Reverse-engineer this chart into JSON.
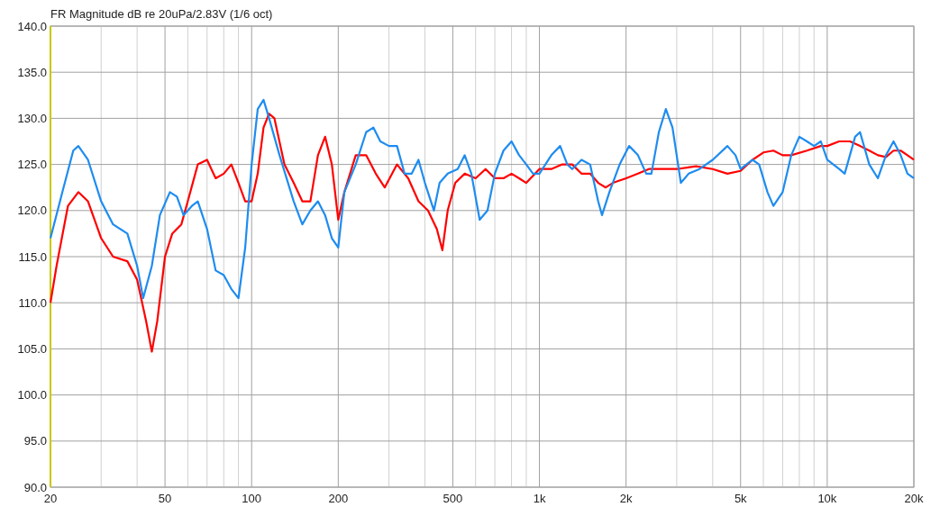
{
  "chart_data": {
    "type": "line",
    "title": "FR Magnitude dB re 20uPa/2.83V (1/6 oct)",
    "log": "x",
    "grid": true,
    "xlim": [
      20,
      20000
    ],
    "ylim": [
      90,
      140
    ],
    "xticks": [
      20,
      {
        "value": 30,
        "label": null
      },
      {
        "value": 40,
        "label": null
      },
      50,
      {
        "value": 60,
        "label": null
      },
      {
        "value": 70,
        "label": null
      },
      {
        "value": 80,
        "label": null
      },
      {
        "value": 90,
        "label": null
      },
      100,
      200,
      {
        "value": 300,
        "label": null
      },
      {
        "value": 400,
        "label": null
      },
      500,
      {
        "value": 600,
        "label": null
      },
      {
        "value": 700,
        "label": null
      },
      {
        "value": 800,
        "label": null
      },
      {
        "value": 900,
        "label": null
      },
      {
        "value": 1000,
        "label": "1k"
      },
      {
        "value": 2000,
        "label": "2k"
      },
      {
        "value": 3000,
        "label": null
      },
      {
        "value": 4000,
        "label": null
      },
      {
        "value": 5000,
        "label": "5k"
      },
      {
        "value": 6000,
        "label": null
      },
      {
        "value": 7000,
        "label": null
      },
      {
        "value": 8000,
        "label": null
      },
      {
        "value": 9000,
        "label": null
      },
      {
        "value": 10000,
        "label": "10k"
      },
      {
        "value": 20000,
        "label": "20k"
      }
    ],
    "yticks": [
      {
        "value": 90,
        "label": "90.0"
      },
      {
        "value": 95,
        "label": "95.0"
      },
      {
        "value": 100,
        "label": "100.0"
      },
      {
        "value": 105,
        "label": "105.0"
      },
      {
        "value": 110,
        "label": "110.0"
      },
      {
        "value": 115,
        "label": "115.0"
      },
      {
        "value": 120,
        "label": "120.0"
      },
      {
        "value": 125,
        "label": "125.0"
      },
      {
        "value": 130,
        "label": "130.0"
      },
      {
        "value": 135,
        "label": "135.0"
      },
      {
        "value": 140,
        "label": "140.0"
      }
    ],
    "series": [
      {
        "color": "#ff0000",
        "x": [
          20,
          21,
          23,
          25,
          27,
          30,
          33,
          37,
          40,
          43,
          45,
          47,
          50,
          53,
          57,
          60,
          65,
          70,
          75,
          80,
          85,
          90,
          95,
          100,
          105,
          110,
          115,
          120,
          130,
          140,
          150,
          160,
          170,
          180,
          190,
          200,
          210,
          230,
          250,
          270,
          290,
          320,
          350,
          380,
          410,
          440,
          460,
          480,
          510,
          550,
          600,
          650,
          700,
          750,
          800,
          850,
          900,
          1000,
          1100,
          1200,
          1300,
          1400,
          1500,
          1600,
          1700,
          1800,
          2000,
          2200,
          2400,
          2600,
          2800,
          3000,
          3500,
          4000,
          4500,
          5000,
          5500,
          6000,
          6500,
          7000,
          7500,
          8500,
          9500,
          10000,
          11000,
          12000,
          13000,
          14000,
          15000,
          16000,
          17000,
          18000,
          19000,
          20000
        ],
        "values": [
          110,
          114,
          120.5,
          122,
          121,
          117,
          115,
          114.5,
          112.5,
          108,
          104.7,
          108,
          115,
          117.5,
          118.5,
          121,
          125,
          125.5,
          123.5,
          124,
          125,
          123,
          121,
          121,
          124,
          129,
          130.5,
          130,
          125,
          123,
          121,
          121,
          126,
          128,
          125,
          119,
          122,
          126,
          126,
          124,
          122.5,
          125,
          123.5,
          121,
          120,
          118,
          115.7,
          120,
          123,
          124,
          123.5,
          124.5,
          123.5,
          123.5,
          124,
          123.5,
          123,
          124.5,
          124.5,
          125,
          125,
          124,
          124,
          123,
          122.5,
          123,
          123.5,
          124,
          124.5,
          124.5,
          124.5,
          124.5,
          124.8,
          124.5,
          124,
          124.3,
          125.5,
          126.3,
          126.5,
          126,
          126,
          126.5,
          127,
          127,
          127.5,
          127.5,
          127,
          126.5,
          126,
          125.8,
          126.5,
          126.5,
          126,
          125.5
        ]
      },
      {
        "color": "#1e8cf0",
        "x": [
          20,
          22,
          24,
          25,
          27,
          30,
          33,
          37,
          40,
          42,
          45,
          48,
          52,
          55,
          58,
          62,
          65,
          70,
          75,
          80,
          85,
          90,
          95,
          100,
          105,
          110,
          115,
          125,
          140,
          150,
          160,
          170,
          180,
          190,
          200,
          210,
          230,
          250,
          265,
          280,
          300,
          320,
          340,
          360,
          380,
          400,
          430,
          450,
          480,
          520,
          550,
          580,
          620,
          660,
          700,
          750,
          800,
          850,
          900,
          950,
          1000,
          1100,
          1180,
          1250,
          1300,
          1400,
          1500,
          1600,
          1650,
          1750,
          1900,
          2050,
          2200,
          2350,
          2450,
          2600,
          2750,
          2900,
          3100,
          3300,
          3600,
          4000,
          4500,
          4800,
          5000,
          5500,
          5800,
          6200,
          6500,
          7000,
          7500,
          8000,
          8500,
          9000,
          9500,
          10000,
          11000,
          11500,
          12500,
          13000,
          14000,
          15000,
          16000,
          17000,
          18000,
          19000,
          20000
        ],
        "values": [
          117,
          122,
          126.5,
          127,
          125.5,
          121,
          118.5,
          117.5,
          114,
          110.5,
          114,
          119.5,
          122,
          121.5,
          119.5,
          120.5,
          121,
          118,
          113.5,
          113,
          111.5,
          110.5,
          116,
          125,
          131,
          132,
          130,
          126,
          121,
          118.5,
          120,
          121,
          119.5,
          117,
          116,
          122,
          125,
          128.5,
          129,
          127.5,
          127,
          127,
          124,
          124,
          125.5,
          123,
          120,
          123,
          124,
          124.5,
          126,
          124,
          119,
          120,
          124,
          126.5,
          127.5,
          126,
          125,
          124,
          124,
          126,
          127,
          125,
          124.5,
          125.5,
          125,
          121,
          119.5,
          122,
          125,
          127,
          126,
          124,
          124,
          128.5,
          131,
          129,
          123,
          124,
          124.5,
          125.5,
          127,
          126,
          124.5,
          125.5,
          125,
          122,
          120.5,
          122,
          126,
          128,
          127.5,
          127,
          127.5,
          125.5,
          124.5,
          124,
          128,
          128.5,
          125,
          123.5,
          126,
          127.5,
          126,
          124,
          123.5
        ]
      }
    ]
  }
}
